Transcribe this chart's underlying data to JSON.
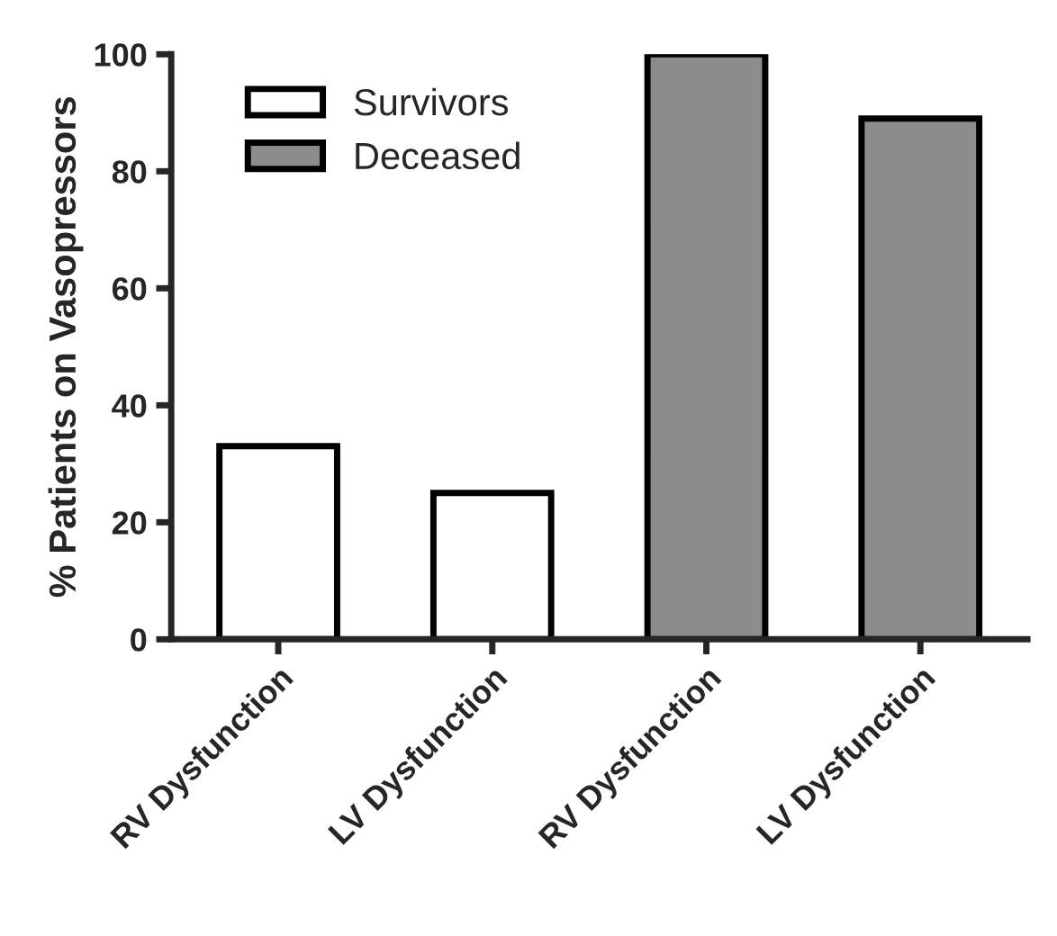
{
  "chart_data": {
    "type": "bar",
    "ylabel": "% Patients on Vasopressors",
    "categories": [
      "RV Dysfunction",
      "LV Dysfunction",
      "RV Dysfunction",
      "LV Dysfunction"
    ],
    "series": [
      {
        "name": "Survivors",
        "color": "#ffffff",
        "values": [
          33,
          25,
          null,
          null
        ]
      },
      {
        "name": "Deceased",
        "color": "#8c8c8c",
        "values": [
          null,
          null,
          100,
          89
        ]
      }
    ],
    "ylim": [
      0,
      100
    ],
    "yticks": [
      0,
      20,
      40,
      60,
      80,
      100
    ],
    "grid": false,
    "legend": "top left"
  }
}
